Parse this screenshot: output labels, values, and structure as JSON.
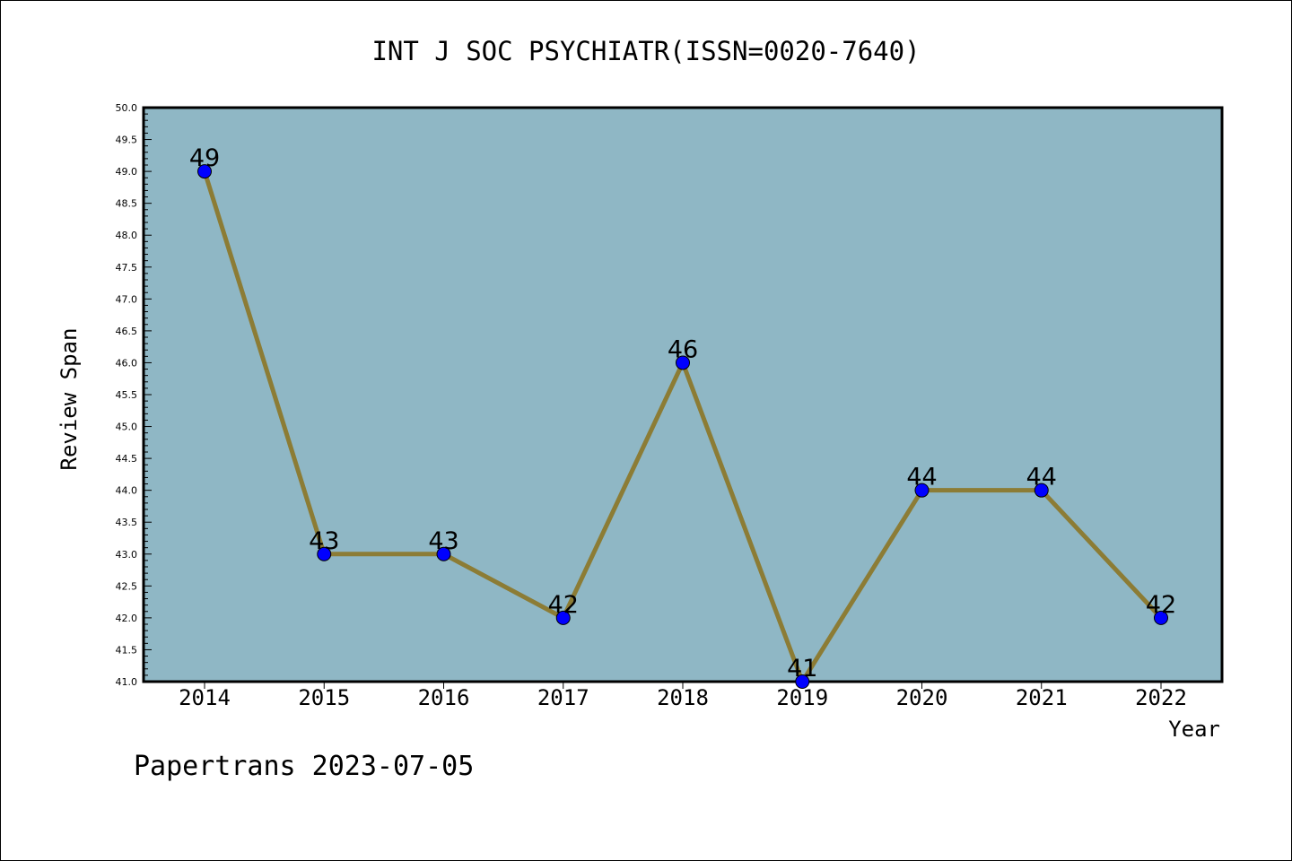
{
  "chart_data": {
    "type": "line",
    "title": "INT J SOC PSYCHIATR(ISSN=0020-7640)",
    "xlabel": "Year",
    "ylabel": "Review Span",
    "x": [
      "2014",
      "2015",
      "2016",
      "2017",
      "2018",
      "2019",
      "2020",
      "2021",
      "2022"
    ],
    "series": [
      {
        "values": [
          49,
          43,
          43,
          42,
          46,
          41,
          44,
          44,
          42
        ]
      }
    ],
    "data_labels": [
      "49",
      "43",
      "43",
      "42",
      "46",
      "41",
      "44",
      "44",
      "42"
    ],
    "ylim": [
      41.0,
      50.0
    ],
    "yticks": [
      "41.0",
      "41.5",
      "42.0",
      "42.5",
      "43.0",
      "43.5",
      "44.0",
      "44.5",
      "45.0",
      "45.5",
      "46.0",
      "46.5",
      "47.0",
      "47.5",
      "48.0",
      "48.5",
      "49.0",
      "49.5",
      "50.0"
    ],
    "grid": false,
    "colors": {
      "plot_background": "#8fb7c5",
      "line": "#8c7c35",
      "marker": "#0000ff"
    }
  },
  "footer": {
    "watermark": "Papertrans 2023-07-05"
  }
}
